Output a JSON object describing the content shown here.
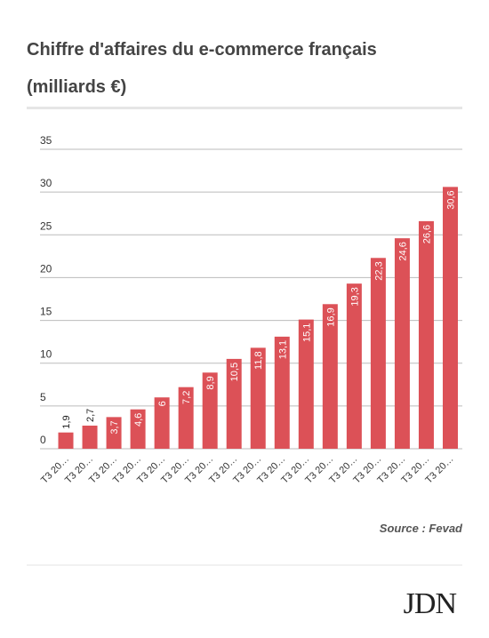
{
  "chart_data": {
    "type": "bar",
    "title": "Chiffre d'affaires du e-commerce français",
    "subtitle": "(milliards €)",
    "categories": [
      "T3 20…",
      "T3 20…",
      "T3 20…",
      "T3 20…",
      "T3 20…",
      "T3 20…",
      "T3 20…",
      "T3 20…",
      "T3 20…",
      "T3 20…",
      "T3 20…",
      "T3 20…",
      "T3 20…",
      "T3 20…",
      "T3 20…",
      "T3 20…",
      "T3 20…"
    ],
    "values": [
      1.9,
      2.7,
      3.7,
      4.6,
      6,
      7.2,
      8.9,
      10.5,
      11.8,
      13.1,
      15.1,
      16.9,
      19.3,
      22.3,
      24.6,
      26.6,
      30.6
    ],
    "value_labels": [
      "1,9",
      "2,7",
      "3,7",
      "4,6",
      "6",
      "7,2",
      "8,9",
      "10,5",
      "11,8",
      "13,1",
      "15,1",
      "16,9",
      "19,3",
      "22,3",
      "24,6",
      "26,6",
      "30,6"
    ],
    "color": "#dc5157",
    "ylim": [
      0,
      35
    ],
    "yticks": [
      0,
      5,
      10,
      15,
      20,
      25,
      30,
      35
    ],
    "grid": true,
    "source": "Source : Fevad",
    "logo": "JDN"
  }
}
